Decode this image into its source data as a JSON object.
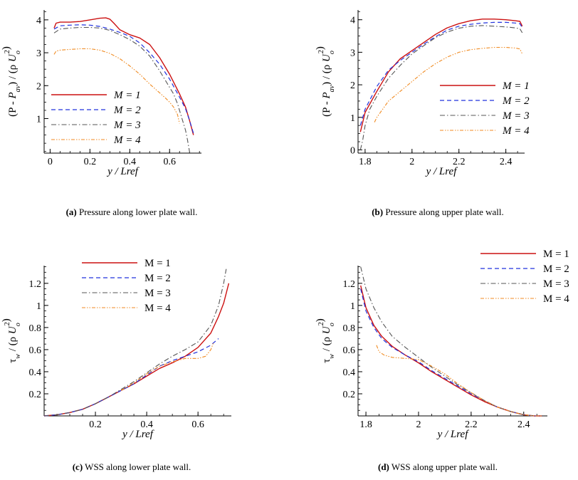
{
  "chart_data": [
    {
      "type": "line",
      "panel": "a",
      "xlabel": "y / Lref",
      "ylabel": "(P - P_av) / (ρ U_o^2)",
      "xlim": [
        -0.03,
        0.76
      ],
      "ylim": [
        -0.05,
        4.3
      ],
      "xticks": [
        0,
        0.2,
        0.4,
        0.6
      ],
      "xtick_labels": [
        "0",
        "0.2",
        "0.4",
        "0.6"
      ],
      "yticks": [
        1,
        2,
        3,
        4
      ],
      "ytick_labels": [
        "1",
        "2",
        "3",
        "4"
      ],
      "legend_labels": [
        "M = 1",
        "M = 2",
        "M = 3",
        "M = 4"
      ],
      "legend_italic": true,
      "legend_position": "bottom-left",
      "caption_label": "(a)",
      "caption_text": "Pressure along lower plate wall.",
      "series": [
        {
          "name": "M = 1",
          "x": [
            0.02,
            0.03,
            0.05,
            0.1,
            0.15,
            0.2,
            0.25,
            0.28,
            0.3,
            0.32,
            0.35,
            0.4,
            0.45,
            0.5,
            0.55,
            0.6,
            0.65,
            0.68,
            0.7,
            0.72
          ],
          "y": [
            3.75,
            3.9,
            3.93,
            3.93,
            3.95,
            4.0,
            4.05,
            4.06,
            4.02,
            3.9,
            3.7,
            3.55,
            3.45,
            3.25,
            2.85,
            2.35,
            1.75,
            1.35,
            0.95,
            0.5
          ]
        },
        {
          "name": "M = 2",
          "x": [
            0.02,
            0.05,
            0.1,
            0.15,
            0.2,
            0.25,
            0.3,
            0.35,
            0.4,
            0.45,
            0.5,
            0.55,
            0.6,
            0.65,
            0.68,
            0.7,
            0.72
          ],
          "y": [
            3.72,
            3.82,
            3.84,
            3.85,
            3.84,
            3.8,
            3.72,
            3.62,
            3.5,
            3.3,
            3.0,
            2.65,
            2.2,
            1.65,
            1.3,
            0.95,
            0.55
          ]
        },
        {
          "name": "M = 3",
          "x": [
            0.02,
            0.05,
            0.1,
            0.15,
            0.2,
            0.25,
            0.3,
            0.35,
            0.4,
            0.45,
            0.5,
            0.55,
            0.6,
            0.62,
            0.64,
            0.66,
            0.68,
            0.69,
            0.7
          ],
          "y": [
            3.6,
            3.72,
            3.75,
            3.77,
            3.77,
            3.75,
            3.68,
            3.55,
            3.4,
            3.2,
            2.9,
            2.45,
            1.95,
            1.75,
            1.45,
            1.05,
            0.65,
            0.35,
            0.0
          ]
        },
        {
          "name": "M = 4",
          "x": [
            0.02,
            0.03,
            0.05,
            0.1,
            0.15,
            0.2,
            0.25,
            0.3,
            0.35,
            0.4,
            0.45,
            0.5,
            0.55,
            0.58,
            0.6,
            0.62,
            0.64,
            0.65
          ],
          "y": [
            2.95,
            3.05,
            3.08,
            3.1,
            3.12,
            3.12,
            3.08,
            2.98,
            2.82,
            2.6,
            2.35,
            2.05,
            1.78,
            1.62,
            1.5,
            1.35,
            1.12,
            0.85
          ]
        }
      ]
    },
    {
      "type": "line",
      "panel": "b",
      "xlabel": "y / Lref",
      "ylabel": "(P - P_av) / (ρ U_o^2)",
      "xlim": [
        1.77,
        2.48
      ],
      "ylim": [
        -0.1,
        4.3
      ],
      "xticks": [
        1.8,
        2.0,
        2.2,
        2.4
      ],
      "xtick_labels": [
        "1.8",
        "2",
        "2.2",
        "2.4"
      ],
      "yticks": [
        0,
        1,
        2,
        3,
        4
      ],
      "ytick_labels": [
        "0",
        "1",
        "2",
        "3",
        "4"
      ],
      "legend_labels": [
        "M = 1",
        "M = 2",
        "M = 3",
        "M = 4"
      ],
      "legend_italic": true,
      "legend_position": "right",
      "caption_label": "(b)",
      "caption_text": "Pressure along upper plate wall.",
      "series": [
        {
          "name": "M = 1",
          "x": [
            1.78,
            1.8,
            1.85,
            1.9,
            1.95,
            2.0,
            2.05,
            2.1,
            2.15,
            2.2,
            2.25,
            2.3,
            2.35,
            2.4,
            2.44,
            2.46,
            2.47
          ],
          "y": [
            0.55,
            1.15,
            1.8,
            2.4,
            2.8,
            3.05,
            3.3,
            3.55,
            3.75,
            3.88,
            3.97,
            4.02,
            4.02,
            4.0,
            3.97,
            3.95,
            3.8
          ]
        },
        {
          "name": "M = 2",
          "x": [
            1.78,
            1.8,
            1.85,
            1.9,
            1.95,
            2.0,
            2.05,
            2.1,
            2.15,
            2.2,
            2.25,
            2.3,
            2.35,
            2.4,
            2.44,
            2.46,
            2.47
          ],
          "y": [
            0.75,
            1.25,
            1.95,
            2.45,
            2.75,
            3.0,
            3.25,
            3.48,
            3.68,
            3.8,
            3.86,
            3.9,
            3.92,
            3.92,
            3.9,
            3.88,
            3.75
          ]
        },
        {
          "name": "M = 3",
          "x": [
            1.78,
            1.79,
            1.8,
            1.82,
            1.85,
            1.9,
            1.95,
            2.0,
            2.05,
            2.1,
            2.15,
            2.2,
            2.25,
            2.3,
            2.35,
            2.4,
            2.44,
            2.46,
            2.47
          ],
          "y": [
            0.0,
            0.3,
            0.75,
            1.25,
            1.65,
            2.2,
            2.6,
            2.95,
            3.2,
            3.45,
            3.62,
            3.74,
            3.8,
            3.82,
            3.8,
            3.78,
            3.75,
            3.72,
            3.6
          ]
        },
        {
          "name": "M = 4",
          "x": [
            1.84,
            1.85,
            1.87,
            1.9,
            1.95,
            2.0,
            2.05,
            2.1,
            2.15,
            2.2,
            2.25,
            2.3,
            2.35,
            2.4,
            2.44,
            2.46,
            2.47
          ],
          "y": [
            0.85,
            1.0,
            1.2,
            1.5,
            1.8,
            2.1,
            2.4,
            2.65,
            2.85,
            3.0,
            3.08,
            3.12,
            3.15,
            3.15,
            3.13,
            3.1,
            2.95
          ]
        }
      ]
    },
    {
      "type": "line",
      "panel": "c",
      "xlabel": "y / Lref",
      "ylabel": "τ_w / (ρ U_o^2)",
      "xlim": [
        0.0,
        0.73
      ],
      "ylim": [
        0.0,
        1.36
      ],
      "xticks": [
        0.2,
        0.4,
        0.6
      ],
      "xtick_labels": [
        "0.2",
        "0.4",
        "0.6"
      ],
      "yticks": [
        0.2,
        0.4,
        0.6,
        0.8,
        1.0,
        1.2
      ],
      "ytick_labels": [
        "0.2",
        "0.4",
        "0.6",
        "0.8",
        "1",
        "1.2"
      ],
      "legend_labels": [
        "M = 1",
        "M = 2",
        "M = 3",
        "M = 4"
      ],
      "legend_italic": false,
      "legend_position": "top-left",
      "caption_label": "(c)",
      "caption_text": "WSS along lower plate wall.",
      "series": [
        {
          "name": "M = 1",
          "x": [
            0.0,
            0.05,
            0.1,
            0.15,
            0.2,
            0.25,
            0.3,
            0.35,
            0.4,
            0.45,
            0.5,
            0.55,
            0.6,
            0.65,
            0.68,
            0.7,
            0.72
          ],
          "y": [
            0.0,
            0.01,
            0.03,
            0.06,
            0.11,
            0.17,
            0.23,
            0.29,
            0.36,
            0.43,
            0.48,
            0.54,
            0.62,
            0.75,
            0.9,
            1.02,
            1.2
          ]
        },
        {
          "name": "M = 2",
          "x": [
            0.0,
            0.05,
            0.1,
            0.15,
            0.2,
            0.25,
            0.3,
            0.35,
            0.4,
            0.45,
            0.5,
            0.55,
            0.6,
            0.65,
            0.68
          ],
          "y": [
            0.0,
            0.01,
            0.03,
            0.06,
            0.11,
            0.17,
            0.23,
            0.29,
            0.37,
            0.45,
            0.5,
            0.54,
            0.58,
            0.64,
            0.7
          ]
        },
        {
          "name": "M = 3",
          "x": [
            0.0,
            0.05,
            0.1,
            0.15,
            0.2,
            0.25,
            0.3,
            0.35,
            0.4,
            0.45,
            0.5,
            0.55,
            0.6,
            0.65,
            0.68,
            0.7,
            0.71
          ],
          "y": [
            0.0,
            0.01,
            0.03,
            0.06,
            0.11,
            0.17,
            0.24,
            0.31,
            0.39,
            0.47,
            0.54,
            0.6,
            0.67,
            0.82,
            1.0,
            1.2,
            1.33
          ]
        },
        {
          "name": "M = 4",
          "x": [
            0.3,
            0.35,
            0.4,
            0.45,
            0.5,
            0.55,
            0.6,
            0.63,
            0.65,
            0.66
          ],
          "y": [
            0.23,
            0.3,
            0.38,
            0.45,
            0.49,
            0.52,
            0.52,
            0.54,
            0.6,
            0.66
          ]
        }
      ]
    },
    {
      "type": "line",
      "panel": "d",
      "xlabel": "y / Lref",
      "ylabel": "τ_w / (ρ U_o^2)",
      "xlim": [
        1.77,
        2.49
      ],
      "ylim": [
        0.0,
        1.36
      ],
      "xticks": [
        1.8,
        2.0,
        2.2,
        2.4
      ],
      "xtick_labels": [
        "1.8",
        "2",
        "2.2",
        "2.4"
      ],
      "yticks": [
        0.2,
        0.4,
        0.6,
        0.8,
        1.0,
        1.2
      ],
      "ytick_labels": [
        "0.2",
        "0.4",
        "0.6",
        "0.8",
        "1",
        "1.2"
      ],
      "legend_labels": [
        "M = 1",
        "M = 2",
        "M = 3",
        "M = 4"
      ],
      "legend_italic": false,
      "legend_position": "top-right",
      "caption_label": "(d)",
      "caption_text": "WSS along upper plate wall.",
      "series": [
        {
          "name": "M = 1",
          "x": [
            1.78,
            1.8,
            1.83,
            1.86,
            1.9,
            1.95,
            2.0,
            2.05,
            2.1,
            2.15,
            2.2,
            2.25,
            2.3,
            2.35,
            2.4,
            2.44,
            2.47
          ],
          "y": [
            1.18,
            0.98,
            0.82,
            0.72,
            0.63,
            0.55,
            0.48,
            0.4,
            0.33,
            0.26,
            0.19,
            0.13,
            0.08,
            0.04,
            0.01,
            0.0,
            0.0
          ]
        },
        {
          "name": "M = 2",
          "x": [
            1.78,
            1.8,
            1.83,
            1.86,
            1.9,
            1.95,
            2.0,
            2.05,
            2.1,
            2.15,
            2.2,
            2.25,
            2.3,
            2.35,
            2.4,
            2.44,
            2.47
          ],
          "y": [
            1.15,
            0.95,
            0.8,
            0.7,
            0.62,
            0.55,
            0.49,
            0.41,
            0.34,
            0.27,
            0.2,
            0.14,
            0.08,
            0.04,
            0.01,
            0.0,
            0.0
          ]
        },
        {
          "name": "M = 3",
          "x": [
            1.78,
            1.8,
            1.83,
            1.86,
            1.9,
            1.95,
            2.0,
            2.05,
            2.1,
            2.15,
            2.2,
            2.25,
            2.3,
            2.35,
            2.4,
            2.44,
            2.47
          ],
          "y": [
            1.35,
            1.15,
            0.98,
            0.85,
            0.72,
            0.62,
            0.53,
            0.44,
            0.36,
            0.28,
            0.21,
            0.14,
            0.08,
            0.04,
            0.01,
            0.0,
            0.0
          ]
        },
        {
          "name": "M = 4",
          "x": [
            1.84,
            1.85,
            1.87,
            1.9,
            1.95,
            2.0,
            2.05,
            2.1,
            2.15,
            2.2,
            2.25,
            2.3,
            2.35,
            2.4,
            2.44,
            2.47
          ],
          "y": [
            0.64,
            0.58,
            0.55,
            0.53,
            0.52,
            0.51,
            0.45,
            0.38,
            0.29,
            0.21,
            0.14,
            0.08,
            0.04,
            0.01,
            0.0,
            0.0
          ]
        }
      ]
    }
  ],
  "colors": {
    "M1": "#cc1111",
    "M2": "#2233dd",
    "M3": "#555555",
    "M4": "#f08a20",
    "axis": "#000000"
  }
}
